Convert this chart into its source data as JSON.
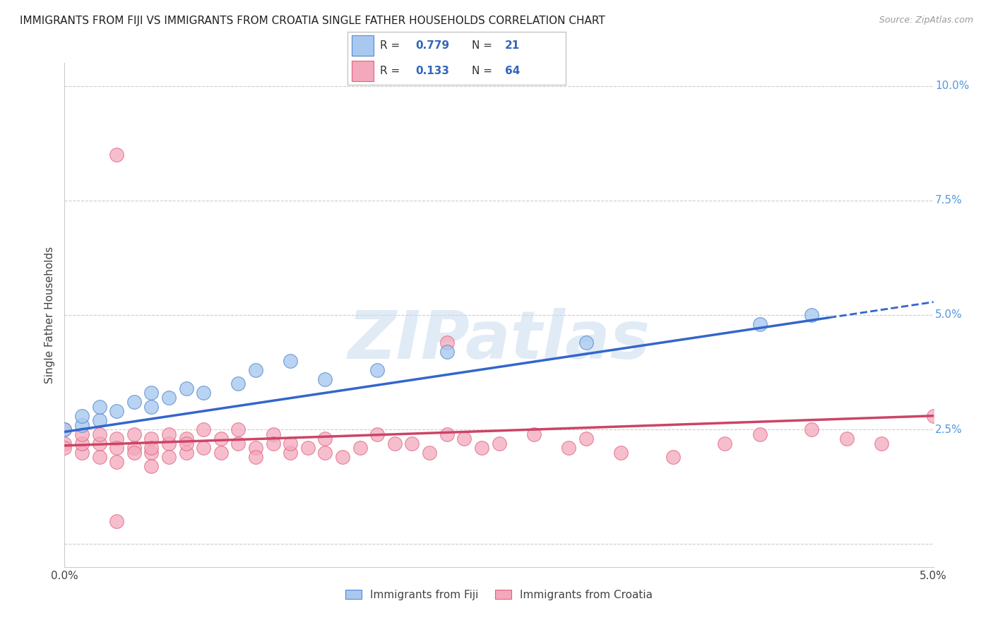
{
  "title": "IMMIGRANTS FROM FIJI VS IMMIGRANTS FROM CROATIA SINGLE FATHER HOUSEHOLDS CORRELATION CHART",
  "source": "Source: ZipAtlas.com",
  "ylabel": "Single Father Households",
  "fiji_R": 0.779,
  "fiji_N": 21,
  "croatia_R": 0.133,
  "croatia_N": 64,
  "fiji_color": "#a8c8f0",
  "croatia_color": "#f4a8bc",
  "fiji_edge_color": "#5588cc",
  "croatia_edge_color": "#e06080",
  "fiji_line_color": "#3366cc",
  "croatia_line_color": "#cc4466",
  "legend_fiji": "Immigrants from Fiji",
  "legend_croatia": "Immigrants from Croatia",
  "xlim": [
    0.0,
    0.05
  ],
  "ylim": [
    -0.005,
    0.105
  ],
  "right_ytick_vals": [
    0.025,
    0.05,
    0.075,
    0.1
  ],
  "right_ytick_labels": [
    "2.5%",
    "5.0%",
    "7.5%",
    "10.0%"
  ],
  "watermark": "ZIPatlas",
  "background_color": "#ffffff",
  "grid_color": "#cccccc"
}
